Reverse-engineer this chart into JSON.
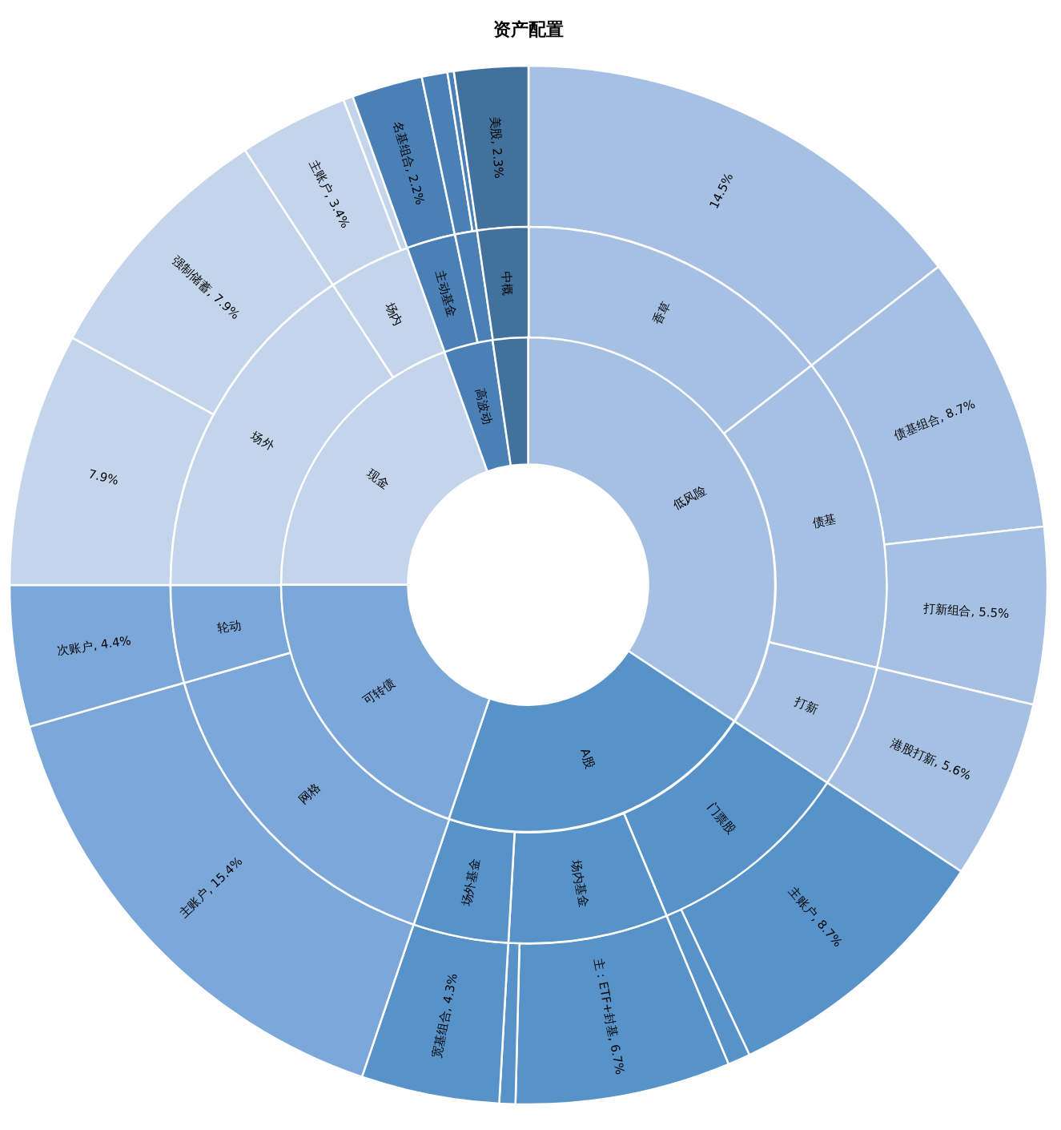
{
  "chart_data": [
    {
      "type": "donut",
      "title": "资产配置",
      "categories": [
        null,
        "债基组合",
        "打新组合",
        "港股打新",
        "主账户",
        null,
        "主：ETF+封基",
        null,
        "宽基组合",
        "主账户",
        "次账户",
        null,
        "强制储蓄",
        "主账户",
        null,
        "名基组合",
        null,
        null,
        "美股"
      ],
      "values": [
        14.5,
        8.7,
        5.5,
        5.6,
        8.7,
        0.7,
        6.7,
        0.5,
        4.3,
        15.4,
        4.4,
        7.9,
        7.9,
        3.4,
        0.3,
        2.2,
        0.8,
        0.2,
        2.3
      ],
      "value_labels": [
        "14.5%",
        "8.7%",
        "5.5%",
        "5.6%",
        "8.7%",
        null,
        "6.7%",
        null,
        "4.3%",
        "15.4%",
        "4.4%",
        "7.9%",
        "7.9%",
        "3.4%",
        null,
        "2.2%",
        null,
        null,
        "2.3%"
      ],
      "colors": [
        "#a5c0e3",
        "#a5c0e3",
        "#a5c0e3",
        "#a5c0e3",
        "#5793c9",
        "#5793c9",
        "#5793c9",
        "#5793c9",
        "#5793c9",
        "#7ca8d9",
        "#7ca8d9",
        "#c4d5eb",
        "#c4d5eb",
        "#c4d5eb",
        "#c4d5eb",
        "#4a80b6",
        "#4a80b6",
        "#4a80b6",
        "#42719d"
      ]
    },
    {
      "type": "donut",
      "categories": [
        "香草",
        "债基",
        "打新",
        "门票股",
        "场内基金",
        "场外基金",
        "网格",
        "轮动",
        "场外",
        "场内",
        "主动基金",
        null,
        "中概"
      ],
      "values": [
        14.5,
        14.2,
        5.6,
        9.4,
        7.2,
        4.3,
        15.4,
        4.4,
        15.8,
        3.7,
        2.2,
        1.0,
        2.3
      ],
      "colors": [
        "#a5c0e3",
        "#a5c0e3",
        "#a5c0e3",
        "#5793c9",
        "#5793c9",
        "#5793c9",
        "#7ca8d9",
        "#7ca8d9",
        "#c4d5eb",
        "#c4d5eb",
        "#4a80b6",
        "#4a80b6",
        "#42719d"
      ]
    },
    {
      "type": "donut",
      "categories": [
        "低风险",
        "A股",
        "可转债",
        "现金",
        "高波动",
        null
      ],
      "values": [
        34.3,
        20.9,
        19.8,
        19.5,
        3.2,
        2.3
      ],
      "colors": [
        "#a5c0e3",
        "#5793c9",
        "#7ca8d9",
        "#c4d5eb",
        "#4a80b6",
        "#42719d"
      ]
    }
  ]
}
